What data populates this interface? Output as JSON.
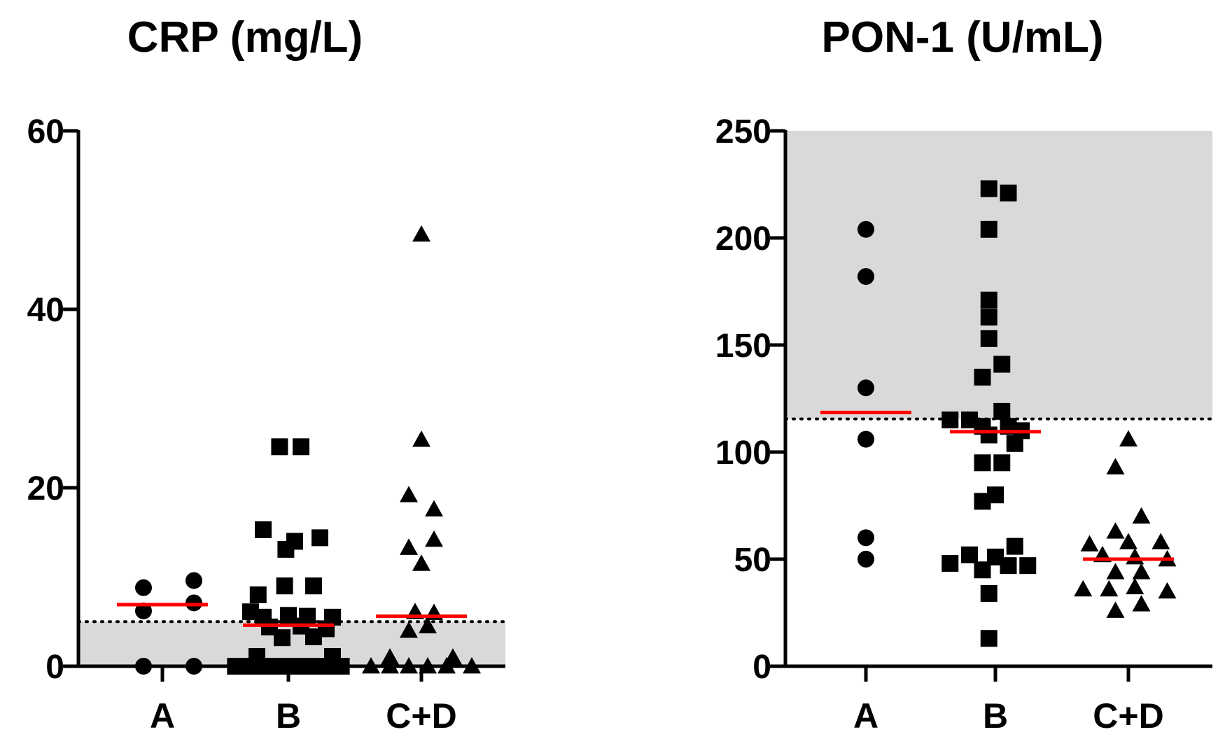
{
  "chart_data": [
    {
      "type": "scatter",
      "title": "CRP (mg/L)",
      "categories": [
        "A",
        "B",
        "C+D"
      ],
      "ylim": [
        0,
        60
      ],
      "yticks": [
        0,
        20,
        40,
        60
      ],
      "reference_line": 5,
      "shaded_band": [
        0,
        5
      ],
      "markers": {
        "A": "circle",
        "B": "square",
        "C+D": "triangle"
      },
      "medians": {
        "A": 6.9,
        "B": 4.6,
        "C+D": 5.6
      },
      "points": {
        "A": [
          {
            "x": -0.15,
            "y": 8.8
          },
          {
            "x": 0.25,
            "y": 9.6
          },
          {
            "x": -0.15,
            "y": 6.2
          },
          {
            "x": 0.25,
            "y": 7.1
          },
          {
            "x": -0.15,
            "y": 0
          },
          {
            "x": 0.25,
            "y": 0
          }
        ],
        "B": [
          {
            "x": -0.07,
            "y": 24.6
          },
          {
            "x": 0.1,
            "y": 24.6
          },
          {
            "x": -0.2,
            "y": 15.3
          },
          {
            "x": 0.25,
            "y": 14.4
          },
          {
            "x": 0.05,
            "y": 14.0
          },
          {
            "x": -0.02,
            "y": 13.1
          },
          {
            "x": -0.03,
            "y": 9.0
          },
          {
            "x": 0.2,
            "y": 9.0
          },
          {
            "x": -0.24,
            "y": 8.0
          },
          {
            "x": -0.3,
            "y": 6.1
          },
          {
            "x": -0.2,
            "y": 5.5
          },
          {
            "x": 0.0,
            "y": 5.7
          },
          {
            "x": 0.15,
            "y": 5.6
          },
          {
            "x": 0.35,
            "y": 5.5
          },
          {
            "x": -0.15,
            "y": 4.4
          },
          {
            "x": 0.1,
            "y": 4.5
          },
          {
            "x": 0.3,
            "y": 4.2
          },
          {
            "x": -0.05,
            "y": 3.2
          },
          {
            "x": 0.2,
            "y": 3.3
          },
          {
            "x": -0.25,
            "y": 1.1
          },
          {
            "x": 0.35,
            "y": 1.1
          },
          {
            "x": -0.42,
            "y": 0
          },
          {
            "x": -0.3,
            "y": 0
          },
          {
            "x": -0.18,
            "y": 0
          },
          {
            "x": -0.06,
            "y": 0
          },
          {
            "x": 0.06,
            "y": 0
          },
          {
            "x": 0.18,
            "y": 0
          },
          {
            "x": 0.3,
            "y": 0
          },
          {
            "x": 0.42,
            "y": 0
          }
        ],
        "C+D": [
          {
            "x": 0.0,
            "y": 48.4
          },
          {
            "x": 0.0,
            "y": 25.4
          },
          {
            "x": -0.1,
            "y": 19.2
          },
          {
            "x": 0.1,
            "y": 17.6
          },
          {
            "x": 0.1,
            "y": 14.2
          },
          {
            "x": -0.1,
            "y": 13.3
          },
          {
            "x": 0.0,
            "y": 11.5
          },
          {
            "x": -0.05,
            "y": 6.1
          },
          {
            "x": 0.1,
            "y": 6.0
          },
          {
            "x": 0.05,
            "y": 4.5
          },
          {
            "x": -0.1,
            "y": 4.0
          },
          {
            "x": -0.4,
            "y": 0
          },
          {
            "x": -0.25,
            "y": 0
          },
          {
            "x": -0.1,
            "y": 0
          },
          {
            "x": 0.05,
            "y": 0
          },
          {
            "x": 0.2,
            "y": 0
          },
          {
            "x": 0.4,
            "y": 0
          },
          {
            "x": -0.25,
            "y": 1.0
          },
          {
            "x": 0.25,
            "y": 1.0
          }
        ]
      }
    },
    {
      "type": "scatter",
      "title": "PON-1 (U/mL)",
      "categories": [
        "A",
        "B",
        "C+D"
      ],
      "ylim": [
        0,
        250
      ],
      "yticks": [
        0,
        50,
        100,
        150,
        200,
        250
      ],
      "reference_line": 115.5,
      "shaded_band": [
        115.5,
        250
      ],
      "markers": {
        "A": "circle",
        "B": "square",
        "C+D": "triangle"
      },
      "medians": {
        "A": 118.5,
        "B": 109.5,
        "C+D": 50
      },
      "points": {
        "A": [
          {
            "x": 0,
            "y": 204
          },
          {
            "x": 0,
            "y": 182
          },
          {
            "x": 0,
            "y": 130
          },
          {
            "x": 0,
            "y": 106
          },
          {
            "x": 0,
            "y": 60
          },
          {
            "x": 0,
            "y": 50
          }
        ],
        "B": [
          {
            "x": -0.05,
            "y": 223
          },
          {
            "x": 0.1,
            "y": 221
          },
          {
            "x": -0.05,
            "y": 204
          },
          {
            "x": -0.05,
            "y": 171
          },
          {
            "x": -0.05,
            "y": 163
          },
          {
            "x": -0.05,
            "y": 153
          },
          {
            "x": 0.05,
            "y": 141
          },
          {
            "x": -0.1,
            "y": 135
          },
          {
            "x": 0.05,
            "y": 119
          },
          {
            "x": -0.35,
            "y": 115
          },
          {
            "x": -0.2,
            "y": 115
          },
          {
            "x": -0.1,
            "y": 112
          },
          {
            "x": 0.1,
            "y": 112
          },
          {
            "x": 0.2,
            "y": 110
          },
          {
            "x": -0.05,
            "y": 108
          },
          {
            "x": 0.15,
            "y": 104
          },
          {
            "x": -0.1,
            "y": 95
          },
          {
            "x": 0.05,
            "y": 95
          },
          {
            "x": 0.0,
            "y": 80
          },
          {
            "x": -0.1,
            "y": 77
          },
          {
            "x": 0.15,
            "y": 56
          },
          {
            "x": -0.2,
            "y": 52
          },
          {
            "x": 0.0,
            "y": 51
          },
          {
            "x": -0.35,
            "y": 48
          },
          {
            "x": -0.1,
            "y": 45
          },
          {
            "x": 0.1,
            "y": 47
          },
          {
            "x": 0.25,
            "y": 47
          },
          {
            "x": -0.05,
            "y": 34
          },
          {
            "x": -0.05,
            "y": 13
          }
        ],
        "C+D": [
          {
            "x": 0.0,
            "y": 106
          },
          {
            "x": -0.1,
            "y": 93
          },
          {
            "x": 0.1,
            "y": 70
          },
          {
            "x": -0.1,
            "y": 63
          },
          {
            "x": -0.3,
            "y": 57
          },
          {
            "x": 0.0,
            "y": 58
          },
          {
            "x": 0.25,
            "y": 58
          },
          {
            "x": -0.2,
            "y": 52
          },
          {
            "x": 0.05,
            "y": 51
          },
          {
            "x": 0.3,
            "y": 50
          },
          {
            "x": -0.1,
            "y": 44
          },
          {
            "x": 0.1,
            "y": 44
          },
          {
            "x": -0.35,
            "y": 36
          },
          {
            "x": -0.15,
            "y": 36
          },
          {
            "x": 0.05,
            "y": 37
          },
          {
            "x": 0.3,
            "y": 35
          },
          {
            "x": -0.1,
            "y": 26
          },
          {
            "x": 0.1,
            "y": 29
          }
        ]
      }
    }
  ]
}
